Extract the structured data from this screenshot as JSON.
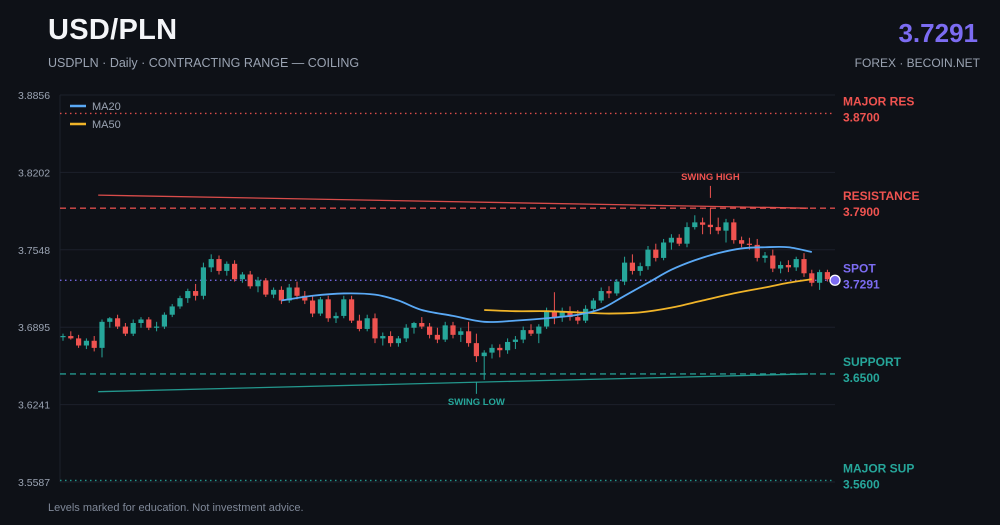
{
  "header": {
    "title": "USD/PLN",
    "subtitle": "USDPLN · Daily · CONTRACTING RANGE — COILING",
    "spot_value": "3.7291",
    "source": "FOREX · BECOIN.NET"
  },
  "footnote": "Levels marked for education. Not investment advice.",
  "colors": {
    "background": "#0e1117",
    "grid": "#1c212b",
    "up": "#26a69a",
    "down": "#ef5350",
    "resistance": "#ef5350",
    "support": "#26a69a",
    "spot": "#7c6cf2",
    "ma20": "#5aa9f5",
    "ma50": "#f0b429",
    "axis_text": "#9aa3b2"
  },
  "chart_data": {
    "type": "candlestick",
    "symbol": "USDPLN",
    "timeframe": "Daily",
    "y_axis": {
      "range": [
        3.5587,
        3.8856
      ],
      "ticks": [
        "3.8856",
        "3.8202",
        "3.7548",
        "3.6895",
        "3.6241",
        "3.5587"
      ]
    },
    "legend": {
      "position": "top-left",
      "items": [
        {
          "name": "MA20",
          "color": "#5aa9f5"
        },
        {
          "name": "MA50",
          "color": "#f0b429"
        }
      ]
    },
    "levels": [
      {
        "name": "MAJOR RES",
        "value": 3.87,
        "label": "3.8700",
        "color": "#ef5350",
        "style": "dotted"
      },
      {
        "name": "RESISTANCE",
        "value": 3.79,
        "label": "3.7900",
        "color": "#ef5350",
        "style": "dashed"
      },
      {
        "name": "SPOT",
        "value": 3.7291,
        "label": "3.7291",
        "color": "#7c6cf2",
        "style": "dotted"
      },
      {
        "name": "SUPPORT",
        "value": 3.65,
        "label": "3.6500",
        "color": "#26a69a",
        "style": "dashed"
      },
      {
        "name": "MAJOR SUP",
        "value": 3.56,
        "label": "3.5600",
        "color": "#26a69a",
        "style": "dotted"
      }
    ],
    "trendlines": [
      {
        "name": "upper",
        "from": [
          4,
          3.801
        ],
        "to": [
          95,
          3.79
        ],
        "color": "#ef5350"
      },
      {
        "name": "lower",
        "from": [
          4,
          3.635
        ],
        "to": [
          95,
          3.65
        ],
        "color": "#26a69a"
      }
    ],
    "annotations": [
      {
        "text": "SWING HIGH",
        "index": 83,
        "value": 3.797,
        "color": "#ef5350",
        "placement": "above"
      },
      {
        "text": "SWING LOW",
        "index": 53,
        "value": 3.645,
        "color": "#26a69a",
        "placement": "below"
      }
    ],
    "candles": [
      [
        3.681,
        3.684,
        3.678,
        3.682
      ],
      [
        3.682,
        3.686,
        3.679,
        3.68
      ],
      [
        3.68,
        3.683,
        3.672,
        3.674
      ],
      [
        3.674,
        3.68,
        3.671,
        3.678
      ],
      [
        3.678,
        3.682,
        3.669,
        3.672
      ],
      [
        3.672,
        3.696,
        3.664,
        3.694
      ],
      [
        3.694,
        3.698,
        3.689,
        3.697
      ],
      [
        3.697,
        3.7,
        3.688,
        3.69
      ],
      [
        3.69,
        3.693,
        3.682,
        3.684
      ],
      [
        3.684,
        3.696,
        3.682,
        3.693
      ],
      [
        3.693,
        3.698,
        3.689,
        3.696
      ],
      [
        3.696,
        3.698,
        3.687,
        3.689
      ],
      [
        3.689,
        3.694,
        3.686,
        3.69
      ],
      [
        3.69,
        3.702,
        3.688,
        3.7
      ],
      [
        3.7,
        3.709,
        3.698,
        3.707
      ],
      [
        3.707,
        3.716,
        3.705,
        3.714
      ],
      [
        3.714,
        3.722,
        3.71,
        3.72
      ],
      [
        3.72,
        3.726,
        3.712,
        3.716
      ],
      [
        3.716,
        3.744,
        3.713,
        3.74
      ],
      [
        3.74,
        3.751,
        3.736,
        3.747
      ],
      [
        3.747,
        3.75,
        3.734,
        3.737
      ],
      [
        3.737,
        3.745,
        3.733,
        3.743
      ],
      [
        3.743,
        3.746,
        3.728,
        3.73
      ],
      [
        3.73,
        3.736,
        3.727,
        3.734
      ],
      [
        3.734,
        3.737,
        3.722,
        3.724
      ],
      [
        3.724,
        3.732,
        3.719,
        3.729
      ],
      [
        3.729,
        3.731,
        3.715,
        3.717
      ],
      [
        3.717,
        3.723,
        3.714,
        3.721
      ],
      [
        3.721,
        3.724,
        3.709,
        3.712
      ],
      [
        3.712,
        3.726,
        3.71,
        3.723
      ],
      [
        3.723,
        3.728,
        3.713,
        3.716
      ],
      [
        3.716,
        3.72,
        3.709,
        3.712
      ],
      [
        3.712,
        3.716,
        3.698,
        3.701
      ],
      [
        3.701,
        3.715,
        3.699,
        3.713
      ],
      [
        3.713,
        3.716,
        3.694,
        3.697
      ],
      [
        3.697,
        3.702,
        3.693,
        3.699
      ],
      [
        3.699,
        3.716,
        3.697,
        3.713
      ],
      [
        3.713,
        3.716,
        3.693,
        3.695
      ],
      [
        3.695,
        3.7,
        3.686,
        3.688
      ],
      [
        3.688,
        3.7,
        3.686,
        3.697
      ],
      [
        3.697,
        3.701,
        3.676,
        3.68
      ],
      [
        3.68,
        3.685,
        3.674,
        3.682
      ],
      [
        3.682,
        3.686,
        3.673,
        3.676
      ],
      [
        3.676,
        3.682,
        3.673,
        3.68
      ],
      [
        3.68,
        3.692,
        3.677,
        3.689
      ],
      [
        3.689,
        3.694,
        3.684,
        3.693
      ],
      [
        3.693,
        3.698,
        3.688,
        3.69
      ],
      [
        3.69,
        3.693,
        3.68,
        3.683
      ],
      [
        3.683,
        3.689,
        3.676,
        3.679
      ],
      [
        3.679,
        3.694,
        3.677,
        3.691
      ],
      [
        3.691,
        3.694,
        3.68,
        3.683
      ],
      [
        3.683,
        3.689,
        3.677,
        3.686
      ],
      [
        3.686,
        3.694,
        3.673,
        3.676
      ],
      [
        3.676,
        3.684,
        3.66,
        3.665
      ],
      [
        3.665,
        3.67,
        3.645,
        3.668
      ],
      [
        3.668,
        3.675,
        3.663,
        3.672
      ],
      [
        3.672,
        3.675,
        3.664,
        3.67
      ],
      [
        3.67,
        3.68,
        3.667,
        3.677
      ],
      [
        3.677,
        3.682,
        3.671,
        3.679
      ],
      [
        3.679,
        3.69,
        3.676,
        3.687
      ],
      [
        3.687,
        3.692,
        3.682,
        3.684
      ],
      [
        3.684,
        3.692,
        3.676,
        3.69
      ],
      [
        3.69,
        3.706,
        3.688,
        3.703
      ],
      [
        3.703,
        3.719,
        3.692,
        3.698
      ],
      [
        3.698,
        3.706,
        3.694,
        3.702
      ],
      [
        3.702,
        3.707,
        3.695,
        3.698
      ],
      [
        3.698,
        3.704,
        3.692,
        3.695
      ],
      [
        3.695,
        3.708,
        3.693,
        3.705
      ],
      [
        3.705,
        3.714,
        3.703,
        3.712
      ],
      [
        3.712,
        3.723,
        3.71,
        3.72
      ],
      [
        3.72,
        3.724,
        3.714,
        3.718
      ],
      [
        3.718,
        3.73,
        3.716,
        3.728
      ],
      [
        3.728,
        3.749,
        3.725,
        3.744
      ],
      [
        3.744,
        3.751,
        3.734,
        3.737
      ],
      [
        3.737,
        3.744,
        3.733,
        3.741
      ],
      [
        3.741,
        3.758,
        3.738,
        3.755
      ],
      [
        3.755,
        3.76,
        3.745,
        3.748
      ],
      [
        3.748,
        3.764,
        3.746,
        3.761
      ],
      [
        3.761,
        3.768,
        3.755,
        3.765
      ],
      [
        3.765,
        3.768,
        3.758,
        3.76
      ],
      [
        3.76,
        3.778,
        3.757,
        3.774
      ],
      [
        3.774,
        3.784,
        3.772,
        3.778
      ],
      [
        3.778,
        3.782,
        3.768,
        3.776
      ],
      [
        3.776,
        3.79,
        3.768,
        3.774
      ],
      [
        3.774,
        3.782,
        3.768,
        3.771
      ],
      [
        3.771,
        3.781,
        3.761,
        3.778
      ],
      [
        3.778,
        3.781,
        3.76,
        3.763
      ],
      [
        3.763,
        3.766,
        3.757,
        3.76
      ],
      [
        3.76,
        3.765,
        3.755,
        3.759
      ],
      [
        3.759,
        3.764,
        3.745,
        3.748
      ],
      [
        3.748,
        3.753,
        3.744,
        3.75
      ],
      [
        3.75,
        3.755,
        3.736,
        3.739
      ],
      [
        3.739,
        3.745,
        3.735,
        3.742
      ],
      [
        3.742,
        3.746,
        3.736,
        3.74
      ],
      [
        3.74,
        3.749,
        3.737,
        3.747
      ],
      [
        3.747,
        3.752,
        3.732,
        3.735
      ],
      [
        3.735,
        3.738,
        3.724,
        3.727
      ],
      [
        3.727,
        3.738,
        3.721,
        3.736
      ],
      [
        3.736,
        3.738,
        3.728,
        3.73
      ]
    ],
    "ma20": [
      [
        28,
        3.712
      ],
      [
        32,
        3.716
      ],
      [
        36,
        3.718
      ],
      [
        40,
        3.717
      ],
      [
        43,
        3.712
      ],
      [
        46,
        3.704
      ],
      [
        50,
        3.699
      ],
      [
        54,
        3.694
      ],
      [
        58,
        3.695
      ],
      [
        62,
        3.697
      ],
      [
        66,
        3.7
      ],
      [
        69,
        3.705
      ],
      [
        72,
        3.716
      ],
      [
        75,
        3.727
      ],
      [
        78,
        3.738
      ],
      [
        81,
        3.746
      ],
      [
        84,
        3.752
      ],
      [
        87,
        3.756
      ],
      [
        90,
        3.757
      ],
      [
        93,
        3.757
      ],
      [
        96,
        3.753
      ]
    ],
    "ma50": [
      [
        54,
        3.704
      ],
      [
        58,
        3.703
      ],
      [
        62,
        3.703
      ],
      [
        66,
        3.702
      ],
      [
        70,
        3.701
      ],
      [
        74,
        3.702
      ],
      [
        78,
        3.706
      ],
      [
        82,
        3.712
      ],
      [
        86,
        3.718
      ],
      [
        90,
        3.723
      ],
      [
        93,
        3.727
      ],
      [
        96,
        3.73
      ]
    ]
  }
}
